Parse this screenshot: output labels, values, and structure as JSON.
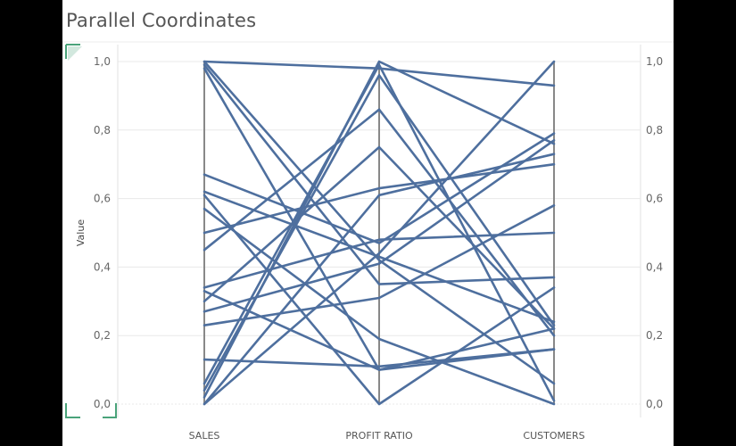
{
  "page": {
    "title": "Parallel Coordinates"
  },
  "chart_data": {
    "type": "line",
    "title": "Parallel Coordinates",
    "ylabel": "Value",
    "ylim": [
      0,
      1
    ],
    "y_ticks": [
      "0,0",
      "0,2",
      "0,4",
      "0,6",
      "0,8",
      "1,0"
    ],
    "y_tick_values": [
      0,
      0.2,
      0.4,
      0.6,
      0.8,
      1.0
    ],
    "categories": [
      "SALES",
      "PROFIT RATIO",
      "CUSTOMERS"
    ],
    "grid": true,
    "colors": {
      "line": "#4e6f9e",
      "axis": "#888888",
      "grid": "#e8e8e8",
      "corner_mark": "#4aa37a"
    },
    "series": [
      {
        "values": [
          1.0,
          0.98,
          0.93
        ]
      },
      {
        "values": [
          1.0,
          0.42,
          0.06
        ]
      },
      {
        "values": [
          0.99,
          0.35,
          0.37
        ]
      },
      {
        "values": [
          0.98,
          0.1,
          0.16
        ]
      },
      {
        "values": [
          0.67,
          0.47,
          0.79
        ]
      },
      {
        "values": [
          0.62,
          0.43,
          0.24
        ]
      },
      {
        "values": [
          0.61,
          0.0,
          0.34
        ]
      },
      {
        "values": [
          0.57,
          0.19,
          0.0
        ]
      },
      {
        "values": [
          0.5,
          0.63,
          0.7
        ]
      },
      {
        "values": [
          0.45,
          0.86,
          0.2
        ]
      },
      {
        "values": [
          0.34,
          0.48,
          0.5
        ]
      },
      {
        "values": [
          0.33,
          0.1,
          0.22
        ]
      },
      {
        "values": [
          0.3,
          0.75,
          0.22
        ]
      },
      {
        "values": [
          0.27,
          0.41,
          0.77
        ]
      },
      {
        "values": [
          0.23,
          0.31,
          0.58
        ]
      },
      {
        "values": [
          0.13,
          0.11,
          0.16
        ]
      },
      {
        "values": [
          0.06,
          0.99,
          0.01
        ]
      },
      {
        "values": [
          0.04,
          0.96,
          0.23
        ]
      },
      {
        "values": [
          0.02,
          1.0,
          0.76
        ]
      },
      {
        "values": [
          0.0,
          0.61,
          0.73
        ]
      },
      {
        "values": [
          0.0,
          0.44,
          1.0
        ]
      }
    ]
  }
}
